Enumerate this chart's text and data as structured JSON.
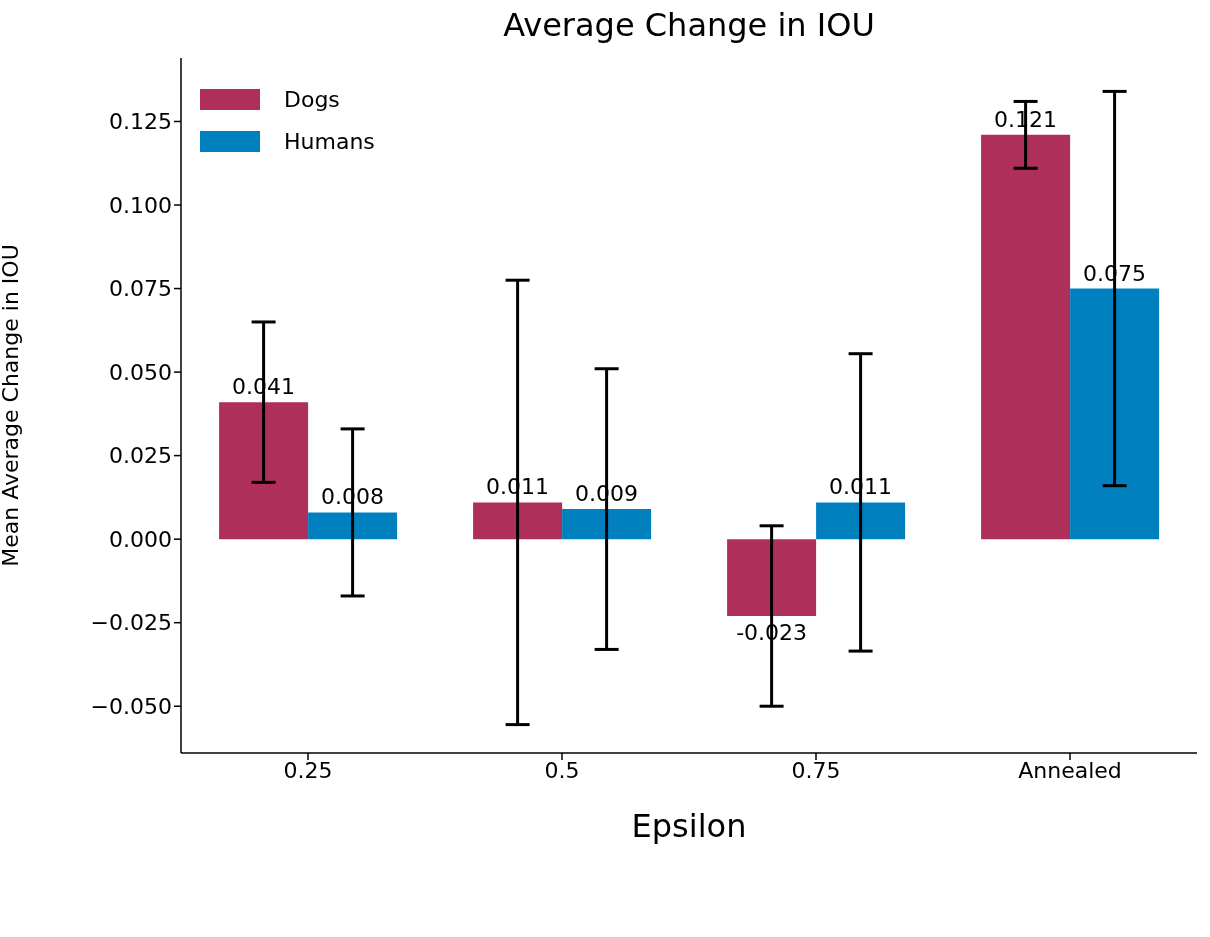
{
  "chart_data": {
    "type": "bar",
    "title": "Average Change in IOU",
    "xlabel": "Epsilon",
    "ylabel": "Mean Average Change in IOU",
    "categories": [
      "0.25",
      "0.5",
      "0.75",
      "Annealed"
    ],
    "series": [
      {
        "name": "Dogs",
        "color": "#af2f5b",
        "values": [
          0.041,
          0.011,
          -0.023,
          0.121
        ],
        "errors": [
          0.024,
          0.0665,
          0.027,
          0.01
        ]
      },
      {
        "name": "Humans",
        "color": "#0080bf",
        "values": [
          0.008,
          0.009,
          0.011,
          0.075
        ],
        "errors": [
          0.025,
          0.042,
          0.0445,
          0.059
        ]
      }
    ],
    "ylim": [
      -0.064,
      0.144
    ],
    "yticks": [
      {
        "value": -0.05,
        "label": "−0.050"
      },
      {
        "value": -0.025,
        "label": "−0.025"
      },
      {
        "value": 0,
        "label": "0.000"
      },
      {
        "value": 0.025,
        "label": "0.025"
      },
      {
        "value": 0.05,
        "label": "0.050"
      },
      {
        "value": 0.075,
        "label": "0.075"
      },
      {
        "value": 0.1,
        "label": "0.100"
      },
      {
        "value": 0.125,
        "label": "0.125"
      }
    ],
    "data_labels": true,
    "legend": "top left",
    "grid": false
  }
}
